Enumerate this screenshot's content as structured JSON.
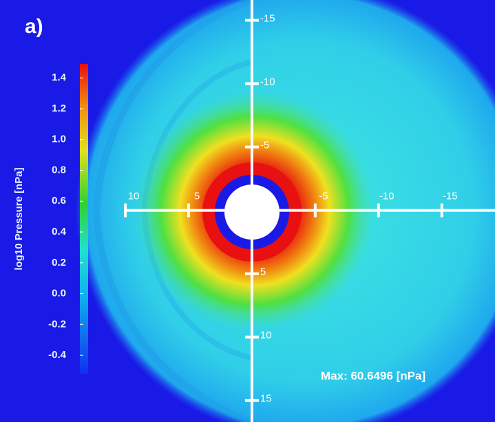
{
  "chart_data": {
    "type": "field",
    "panel_label": "a)",
    "annotation": "Max: 60.6496 [nPa]",
    "xlim": [
      19.9,
      -19.2
    ],
    "ylim": [
      16.7,
      -16.6
    ],
    "xticks": [
      10,
      5,
      -5,
      -10,
      -15
    ],
    "yticks": [
      -15,
      -10,
      -5,
      5,
      10,
      15
    ],
    "colorbar": {
      "label": "log10 Pressure [nPa]",
      "lim": [
        -0.52,
        1.49
      ],
      "ticks": [
        1.4,
        1.2,
        {
          "value": 1,
          "label": "1.0"
        },
        0.8,
        0.6,
        0.4,
        0.2,
        {
          "value": 0,
          "label": "0.0"
        },
        -0.2,
        -0.4
      ]
    }
  }
}
